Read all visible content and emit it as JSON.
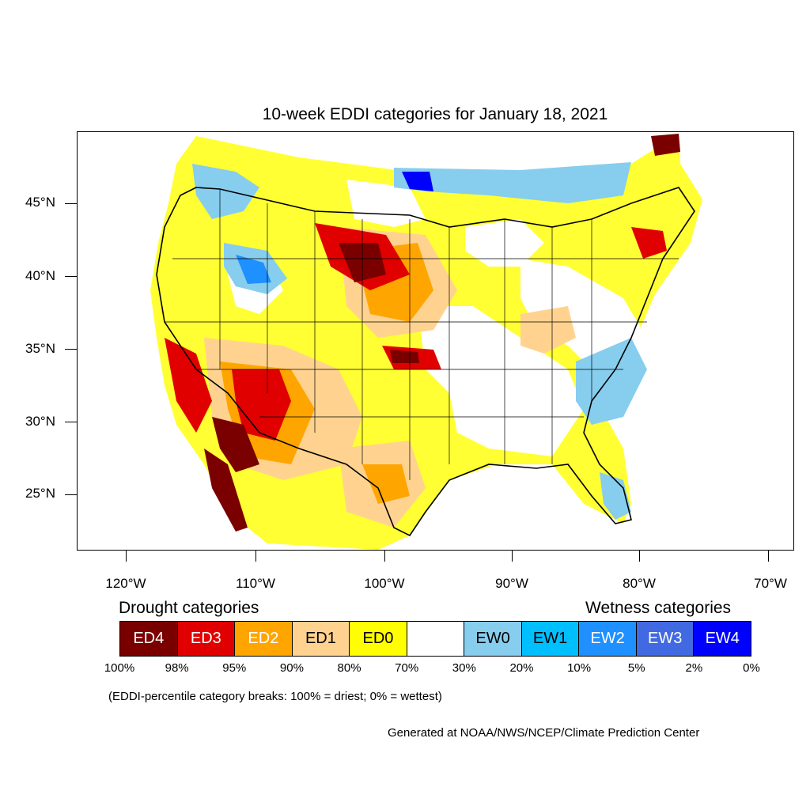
{
  "title": "10-week EDDI categories for January 18, 2021",
  "map": {
    "type": "choropleth-raster",
    "projection": "Lambert conformal (CONUS)",
    "lat_labels": [
      "45°N",
      "40°N",
      "35°N",
      "30°N",
      "25°N"
    ],
    "lon_labels": [
      "120°W",
      "110°W",
      "100°W",
      "90°W",
      "80°W",
      "70°W"
    ]
  },
  "legend": {
    "drought_title": "Drought categories",
    "wetness_title": "Wetness categories",
    "categories": [
      {
        "label": "ED4",
        "color": "#7a0000",
        "text_color": "#ffffff"
      },
      {
        "label": "ED3",
        "color": "#e00000",
        "text_color": "#ffffff"
      },
      {
        "label": "ED2",
        "color": "#ffa500",
        "text_color": "#ffffff"
      },
      {
        "label": "ED1",
        "color": "#ffd38f",
        "text_color": "#000000"
      },
      {
        "label": "ED0",
        "color": "#ffff00",
        "text_color": "#000000"
      },
      {
        "label": "",
        "color": "#ffffff",
        "text_color": "#000000"
      },
      {
        "label": "EW0",
        "color": "#87cdee",
        "text_color": "#000000"
      },
      {
        "label": "EW1",
        "color": "#00bfff",
        "text_color": "#000000"
      },
      {
        "label": "EW2",
        "color": "#1e90ff",
        "text_color": "#ffffff"
      },
      {
        "label": "EW3",
        "color": "#4169e1",
        "text_color": "#ffffff"
      },
      {
        "label": "EW4",
        "color": "#0000ff",
        "text_color": "#ffffff"
      }
    ],
    "breaks": [
      "100%",
      "98%",
      "95%",
      "90%",
      "80%",
      "70%",
      "30%",
      "20%",
      "10%",
      "5%",
      "2%",
      "0%"
    ]
  },
  "note": "(EDDI-percentile category breaks: 100% = driest; 0% = wettest)",
  "credit": "Generated at NOAA/NWS/NCEP/Climate Prediction Center"
}
